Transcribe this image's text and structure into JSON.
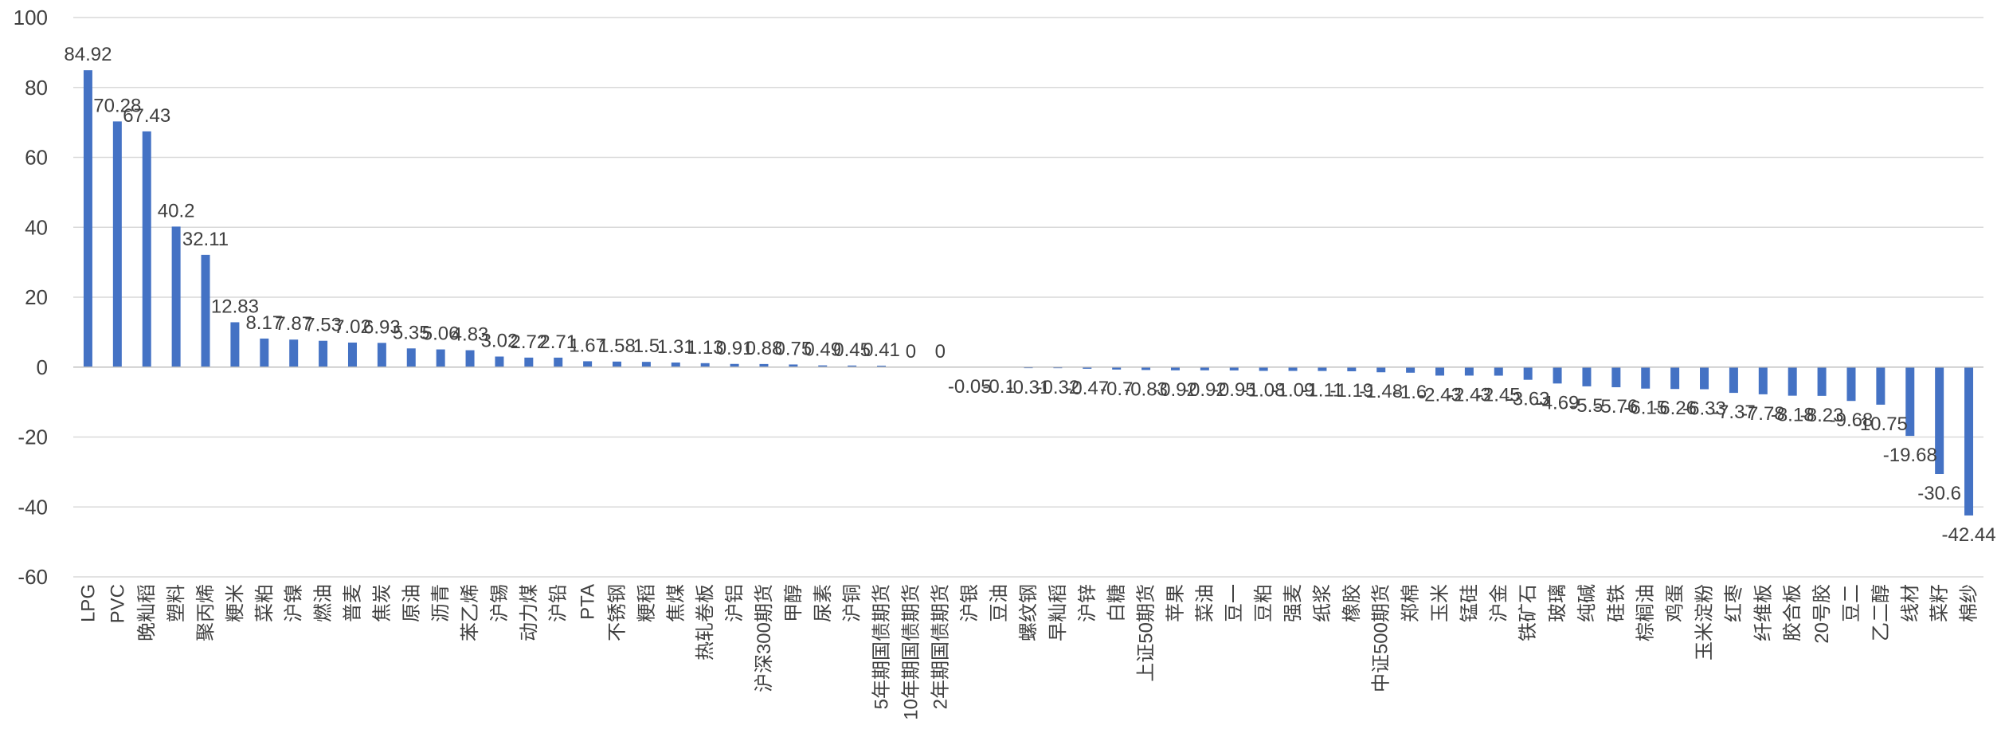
{
  "chart_data": {
    "type": "bar",
    "title": "",
    "xlabel": "",
    "ylabel": "",
    "ylim": [
      -60,
      100
    ],
    "yticks": [
      100,
      80,
      60,
      40,
      20,
      0,
      -20,
      -40,
      -60
    ],
    "grid": true,
    "legend": "none",
    "bar_color": "#4472C4",
    "categories": [
      "LPG",
      "PVC",
      "晚籼稻",
      "塑料",
      "聚丙烯",
      "粳米",
      "菜粕",
      "沪镍",
      "燃油",
      "普麦",
      "焦炭",
      "原油",
      "沥青",
      "苯乙烯",
      "沪锡",
      "动力煤",
      "沪铅",
      "PTA",
      "不锈钢",
      "粳稻",
      "焦煤",
      "热轧卷板",
      "沪铝",
      "沪深300期货",
      "甲醇",
      "尿素",
      "沪铜",
      "5年期国债期货",
      "10年期国债期货",
      "2年期国债期货",
      "沪银",
      "豆油",
      "螺纹钢",
      "早籼稻",
      "沪锌",
      "白糖",
      "上证50期货",
      "苹果",
      "菜油",
      "豆一",
      "豆粕",
      "强麦",
      "纸浆",
      "橡胶",
      "中证500期货",
      "郑棉",
      "玉米",
      "锰硅",
      "沪金",
      "铁矿石",
      "玻璃",
      "纯碱",
      "硅铁",
      "棕榈油",
      "鸡蛋",
      "玉米淀粉",
      "红枣",
      "纤维板",
      "胶合板",
      "20号胶",
      "豆二",
      "乙二醇",
      "线材",
      "菜籽",
      "棉纱"
    ],
    "values": [
      84.92,
      70.28,
      67.43,
      40.2,
      32.11,
      12.83,
      8.17,
      7.87,
      7.53,
      7.02,
      6.93,
      5.35,
      5.06,
      4.83,
      3.02,
      2.72,
      2.71,
      1.67,
      1.58,
      1.5,
      1.31,
      1.13,
      0.91,
      0.88,
      0.75,
      0.49,
      0.45,
      0.41,
      0,
      0,
      -0.05,
      -0.1,
      -0.31,
      -0.32,
      -0.47,
      -0.7,
      -0.83,
      -0.92,
      -0.92,
      -0.95,
      -1.08,
      -1.09,
      -1.11,
      -1.19,
      -1.48,
      -1.6,
      -2.43,
      -2.43,
      -2.45,
      -3.63,
      -4.69,
      -5.5,
      -5.76,
      -6.15,
      -6.26,
      -6.33,
      -7.37,
      -7.78,
      -8.18,
      -8.23,
      -9.68,
      -10.75,
      -19.68,
      -30.6,
      -42.44
    ],
    "data_labels": [
      "84.92",
      "70.28",
      "67.43",
      "40.2",
      "32.11",
      "12.83",
      "8.17",
      "7.87",
      "7.53",
      "7.02",
      "6.93",
      "5.35",
      "5.06",
      "4.83",
      "3.02",
      "2.72",
      "2.71",
      "1.67",
      "1.58",
      "1.5",
      "1.31",
      "1.13",
      "0.91",
      "0.88",
      "0.75",
      "0.49",
      "0.45",
      "0.41",
      "0",
      "0",
      "-0.05",
      "-0.1",
      "-0.31",
      "-0.32",
      "-0.47",
      "-0.7",
      "-0.83",
      "-0.92",
      "-0.92",
      "-0.95",
      "-1.08",
      "-1.09",
      "-1.11",
      "-1.19",
      "-1.48",
      "-1.6",
      "-2.43",
      "-2.43",
      "-2.45",
      "-3.63",
      "-4.69",
      "-5.5",
      "-5.76",
      "-6.15",
      "-6.26",
      "-6.33",
      "-7.37",
      "-7.78",
      "-8.18",
      "-8.23",
      "-9.68",
      "-10.75",
      "-19.68",
      "-30.6",
      "-42.44"
    ]
  }
}
